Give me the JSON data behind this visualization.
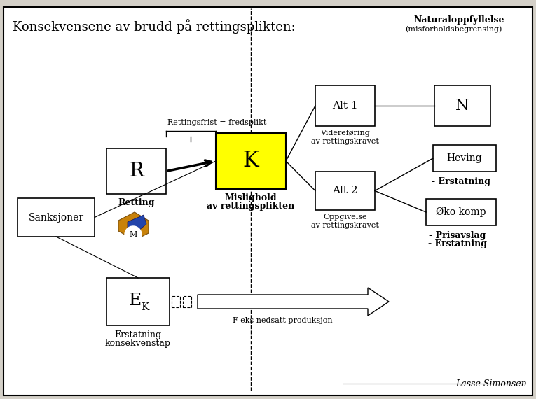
{
  "title": "Konsekvensene av brudd på rettingsplikten:",
  "naturaloppfyllelse_line1": "Naturaloppfyllelse",
  "naturaloppfyllelse_line2": "(misforholdsbegrensing)",
  "box_R_label": "R",
  "box_R_sublabel": "Retting",
  "box_K_label": "K",
  "box_K_sublabel1": "Mislighold",
  "box_K_sublabel2": "av rettingsplikten",
  "sanksjoner_label": "Sanksjoner",
  "rettingsfrist_label": "Rettingsfrist = fredsplikt",
  "alt1_label": "Alt 1",
  "alt1_sublabel1": "Videreføring",
  "alt1_sublabel2": "av rettingskravet",
  "N_label": "N",
  "alt2_label": "Alt 2",
  "alt2_sublabel1": "Oppgivelse",
  "alt2_sublabel2": "av rettingskravet",
  "heving_label": "Heving",
  "heving_sub": "- Erstatning",
  "oko_label": "Øko komp",
  "oko_sub1": "- Prisavslag",
  "oko_sub2": "- Erstatning",
  "EK_label": "E",
  "EK_sub": "K",
  "EK_sublabel1": "Erstatning",
  "EK_sublabel2": "konsekvenstap",
  "arrow_label": "F eks nedsatt produksjon",
  "M_label": "M",
  "author": "Lasse Simonsen",
  "bg_color": "#d4d0c8",
  "box_fill": "#ffffff",
  "K_fill": "#ffff00",
  "border_color": "#000000",
  "fig_w": 7.65,
  "fig_h": 5.7,
  "dpi": 100
}
